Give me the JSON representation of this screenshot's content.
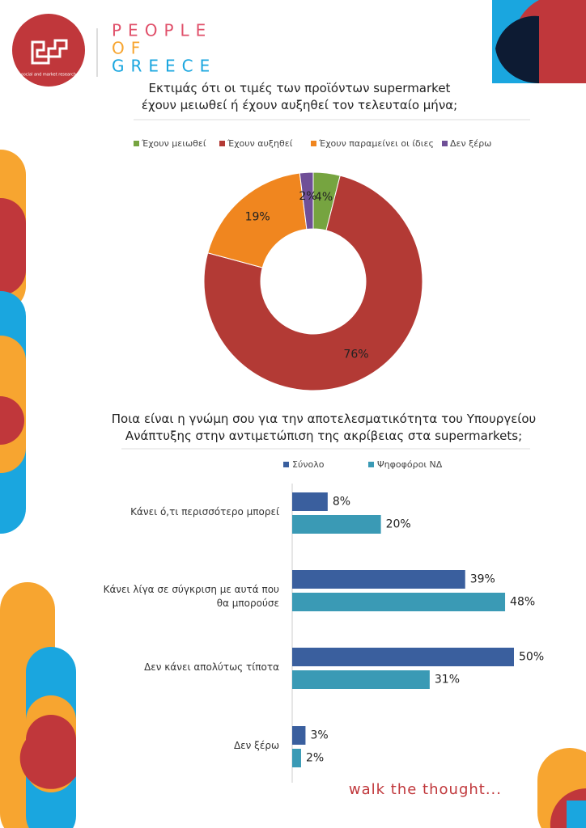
{
  "logo": {
    "tagline": "social and market research",
    "wordmark": [
      "PEOPLE",
      "OF",
      "GREECE"
    ]
  },
  "footer": "walk the thought...",
  "chart_data": [
    {
      "type": "donut",
      "title": "Εκτιμάς ότι οι τιμές των προϊόντων supermarket έχουν μειωθεί ή έχουν αυξηθεί τον τελευταίο μήνα;",
      "categories": [
        "Έχουν μειωθεί",
        "Έχουν αυξηθεί",
        "Έχουν παραμείνει οι ίδιες",
        "Δεν ξέρω"
      ],
      "values": [
        4,
        76,
        19,
        2
      ],
      "value_labels": [
        "4%",
        "76%",
        "19%",
        "2%"
      ],
      "colors": [
        "#76a440",
        "#b33a35",
        "#f0861f",
        "#6f4f97"
      ]
    },
    {
      "type": "hbar",
      "title": "Ποια είναι η γνώμη σου για την αποτελεσματικότητα του Υπουργείου Ανάπτυξης στην αντιμετώπιση της ακρίβειας στα supermarkets;",
      "categories": [
        "Κάνει ό,τι περισσότερο μπορεί",
        "Κάνει λίγα σε σύγκριση με αυτά που θα μπορούσε",
        "Δεν κάνει απολύτως τίποτα",
        "Δεν ξέρω"
      ],
      "series": [
        {
          "name": "Σύνολο",
          "color": "#3a5f9e",
          "values": [
            8,
            39,
            50,
            3
          ],
          "value_labels": [
            "8%",
            "39%",
            "50%",
            "3%"
          ]
        },
        {
          "name": "Ψηφοφόροι ΝΔ",
          "color": "#3a9ab5",
          "values": [
            20,
            48,
            31,
            2
          ],
          "value_labels": [
            "20%",
            "48%",
            "31%",
            "2%"
          ]
        }
      ]
    }
  ]
}
